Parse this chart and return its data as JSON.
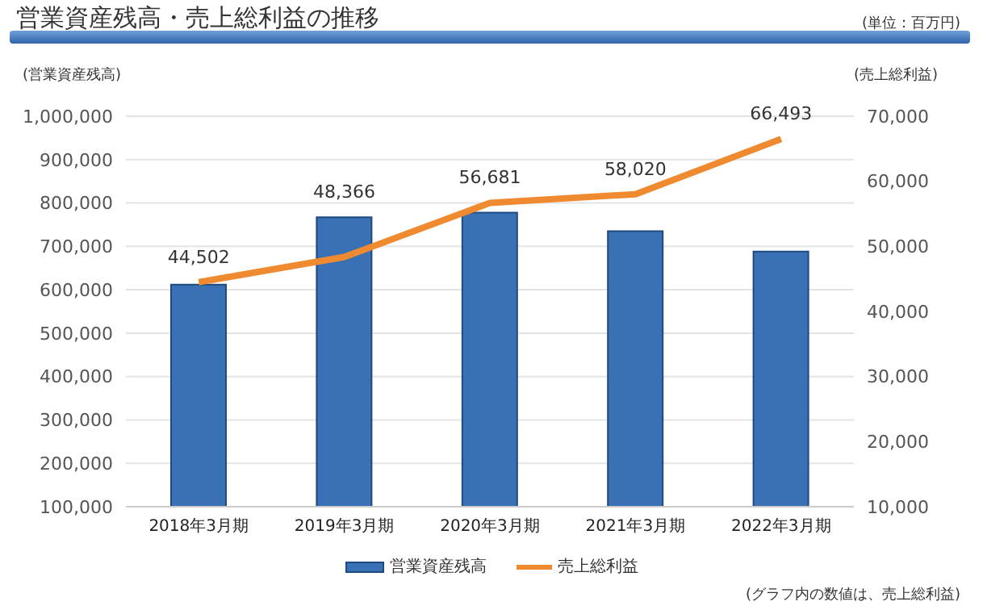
{
  "chart_data": {
    "type": "bar",
    "title": "営業資産残高・売上総利益の推移",
    "ylabel": "(営業資産残高)",
    "y2label": "(売上総利益)",
    "annotations": [
      "(単位：百万円)",
      "(グラフ内の数値は、売上総利益)"
    ],
    "categories": [
      "2018年3月期",
      "2019年3月期",
      "2020年3月期",
      "2021年3月期",
      "2022年3月期"
    ],
    "series": [
      {
        "name": "営業資産残高",
        "color": "#3a70b4",
        "values": [
          612000,
          767000,
          778000,
          735000,
          688000
        ]
      },
      {
        "name": "売上総利益",
        "type": "line",
        "axis": "y2",
        "color": "#f08a30",
        "values": [
          44502,
          48366,
          56681,
          58020,
          66493
        ],
        "value_labels": [
          "44,502",
          "48,366",
          "56,681",
          "58,020",
          "66,493"
        ]
      }
    ],
    "ylim": [
      100000,
      1000000
    ],
    "yticks": [
      {
        "value": 100000,
        "label": "100,000"
      },
      {
        "value": 200000,
        "label": "200,000"
      },
      {
        "value": 300000,
        "label": "300,000"
      },
      {
        "value": 400000,
        "label": "400,000"
      },
      {
        "value": 500000,
        "label": "500,000"
      },
      {
        "value": 600000,
        "label": "600,000"
      },
      {
        "value": 700000,
        "label": "700,000"
      },
      {
        "value": 800000,
        "label": "800,000"
      },
      {
        "value": 900000,
        "label": "900,000"
      },
      {
        "value": 1000000,
        "label": "1,000,000"
      }
    ],
    "y2lim": [
      10000,
      70000
    ],
    "y2ticks": [
      {
        "value": 10000,
        "label": "10,000"
      },
      {
        "value": 20000,
        "label": "20,000"
      },
      {
        "value": 30000,
        "label": "30,000"
      },
      {
        "value": 40000,
        "label": "40,000"
      },
      {
        "value": 50000,
        "label": "50,000"
      },
      {
        "value": 60000,
        "label": "60,000"
      },
      {
        "value": 70000,
        "label": "70,000"
      }
    ],
    "grid": "y",
    "legend": "bottom",
    "marker": "none",
    "line_style": "solid"
  }
}
